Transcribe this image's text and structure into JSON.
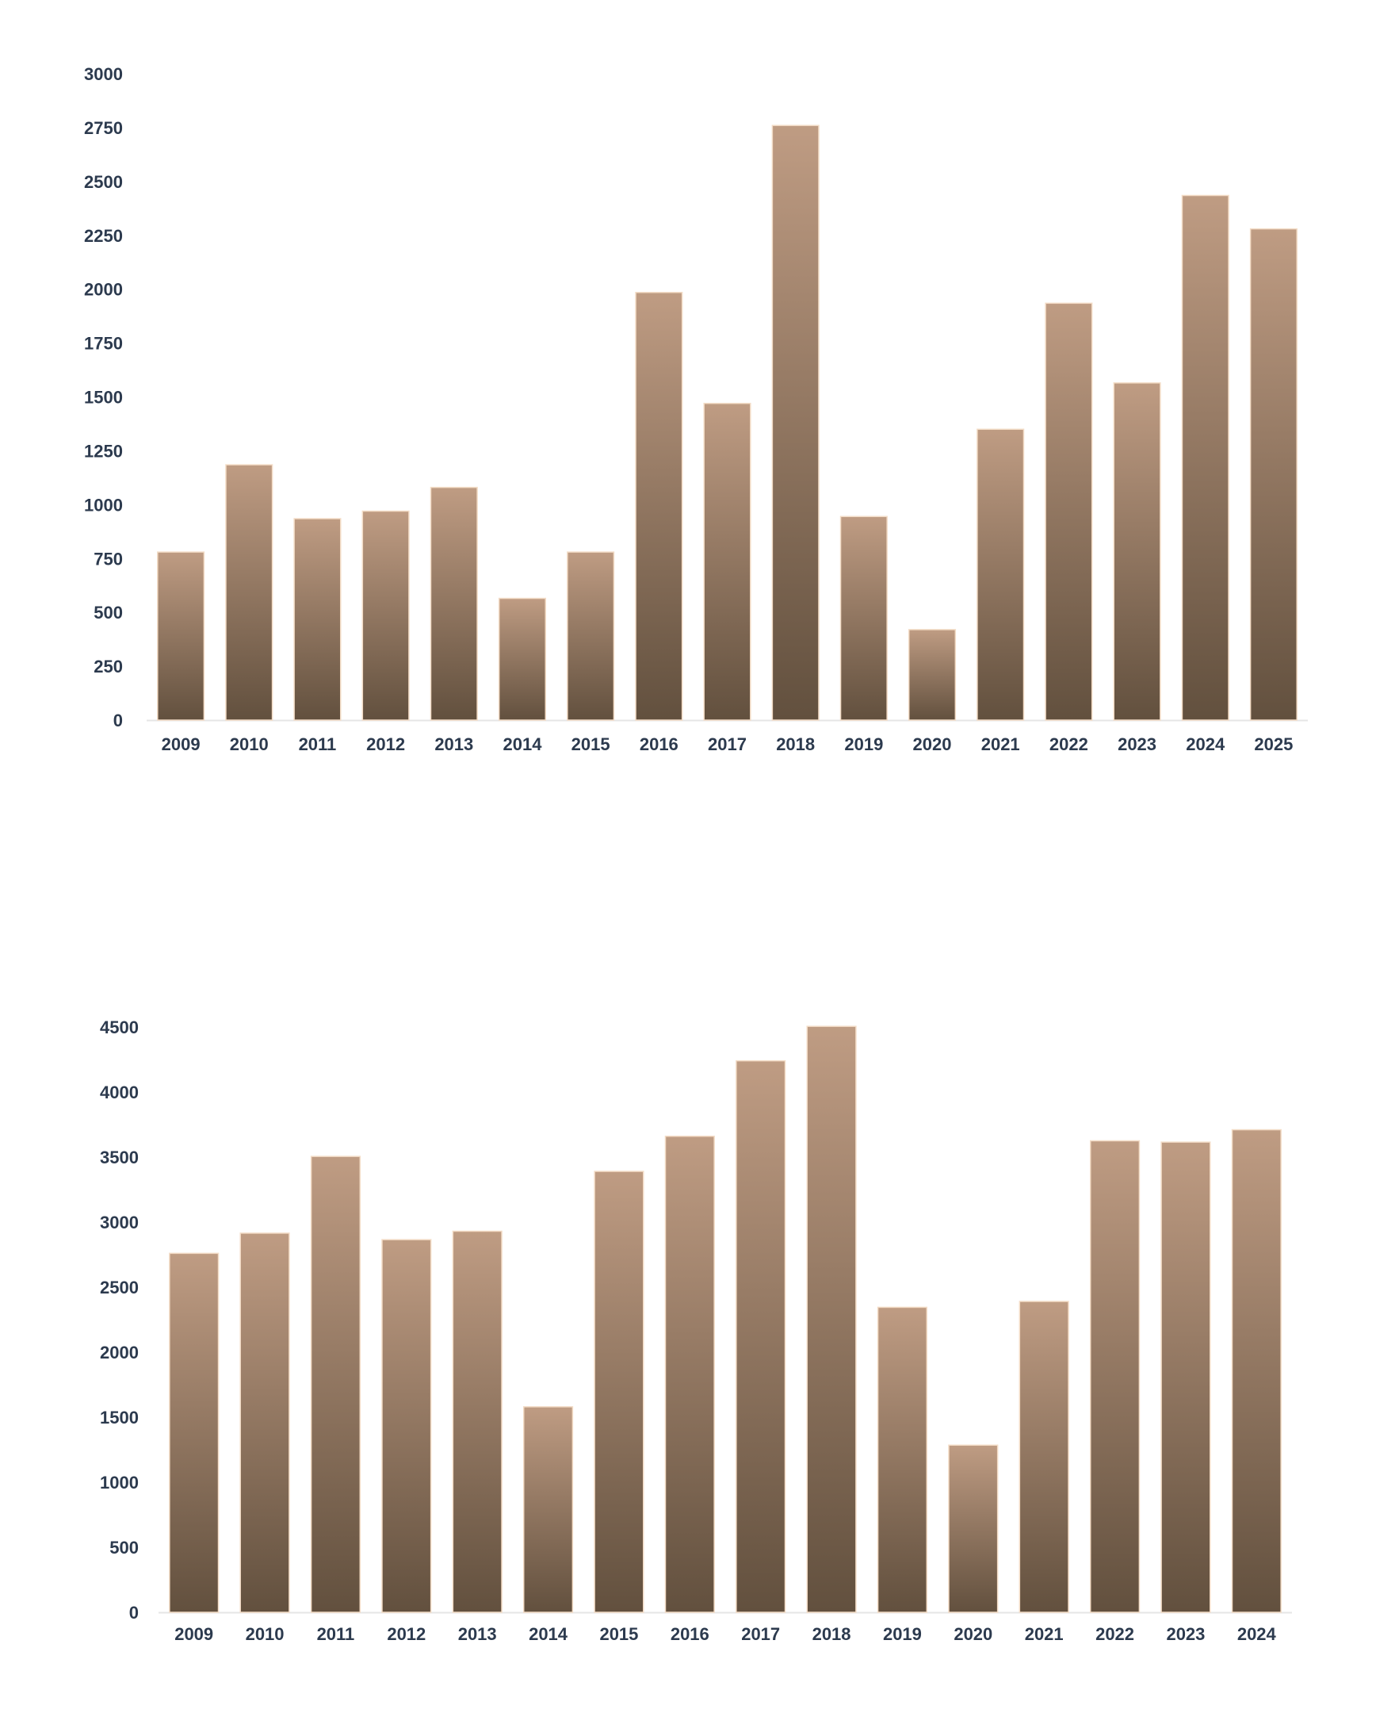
{
  "colors": {
    "bar_top": "#bf9c83",
    "bar_bottom": "#62503e",
    "bar_edge": "#f3dcc6",
    "axis_line": "#e6e6e6",
    "tick_text": "#2c3a4e"
  },
  "chart_data": [
    {
      "type": "bar",
      "title": "",
      "xlabel": "",
      "ylabel": "",
      "categories": [
        "2009",
        "2010",
        "2011",
        "2012",
        "2013",
        "2014",
        "2015",
        "2016",
        "2017",
        "2018",
        "2019",
        "2020",
        "2021",
        "2022",
        "2023",
        "2024",
        "2025"
      ],
      "values": [
        780,
        1185,
        935,
        970,
        1080,
        565,
        780,
        1985,
        1470,
        2760,
        945,
        420,
        1350,
        1935,
        1565,
        2435,
        2280
      ],
      "ylim": [
        0,
        3000
      ],
      "yticks": [
        "0",
        "250",
        "500",
        "750",
        "1000",
        "1250",
        "1500",
        "1750",
        "2000",
        "2250",
        "2500",
        "2750",
        "3000"
      ],
      "grid": false,
      "legend": "none"
    },
    {
      "type": "bar",
      "title": "",
      "xlabel": "",
      "ylabel": "",
      "categories": [
        "2009",
        "2010",
        "2011",
        "2012",
        "2013",
        "2014",
        "2015",
        "2016",
        "2017",
        "2018",
        "2019",
        "2020",
        "2021",
        "2022",
        "2023",
        "2024"
      ],
      "values": [
        2760,
        2915,
        3505,
        2865,
        2930,
        1580,
        3390,
        3660,
        4240,
        4505,
        2345,
        1285,
        2390,
        3625,
        3615,
        3710
      ],
      "ylim": [
        0,
        4500
      ],
      "yticks": [
        "0",
        "500",
        "1000",
        "1500",
        "2000",
        "2500",
        "3000",
        "3500",
        "4000",
        "4500"
      ],
      "grid": false,
      "legend": "none"
    }
  ]
}
